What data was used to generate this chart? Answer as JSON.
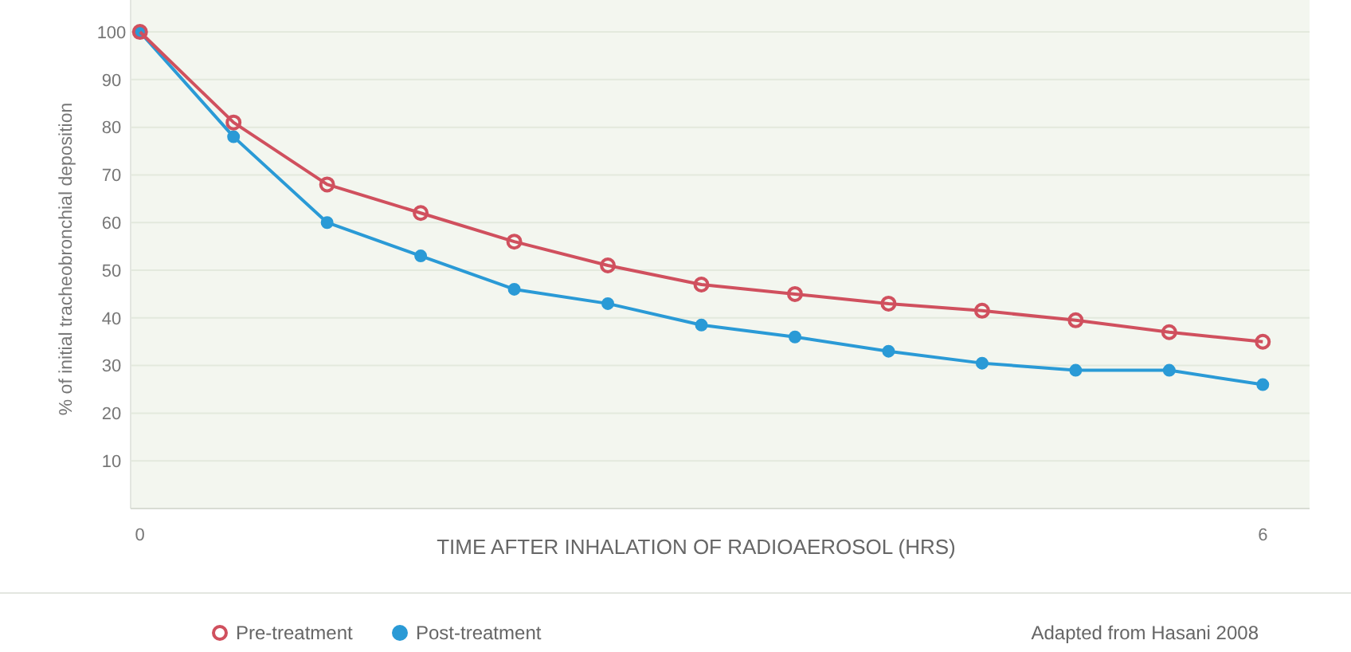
{
  "chart_data": {
    "type": "line",
    "ylabel": "% of initial tracheobronchial deposition",
    "xlabel": "TIME AFTER INHALATION OF RADIOAEROSOL (HRS)",
    "x": [
      0,
      0.5,
      1,
      1.5,
      2,
      2.5,
      3,
      3.5,
      4,
      4.5,
      5,
      5.5,
      6
    ],
    "series": [
      {
        "name": "Pre-treatment",
        "color": "#d0505e",
        "values": [
          100,
          81,
          68,
          62,
          56,
          51,
          47,
          45,
          43,
          41.5,
          39.5,
          37,
          35
        ]
      },
      {
        "name": "Post-treatment",
        "color": "#2a9ad6",
        "values": [
          100,
          78,
          60,
          53,
          46,
          43,
          38.5,
          36,
          33,
          30.5,
          29,
          29,
          26
        ]
      }
    ],
    "xlim": [
      -0.05,
      6.25
    ],
    "xticks": [
      0,
      6
    ],
    "ylim": [
      0,
      106.7
    ],
    "yticks": [
      10,
      20,
      30,
      40,
      50,
      60,
      70,
      80,
      90,
      100
    ],
    "grid": "y",
    "legend": "bottom left",
    "marker": "circle",
    "line_style": "solid",
    "annotations": [
      "Adapted from Hasani 2008"
    ]
  }
}
